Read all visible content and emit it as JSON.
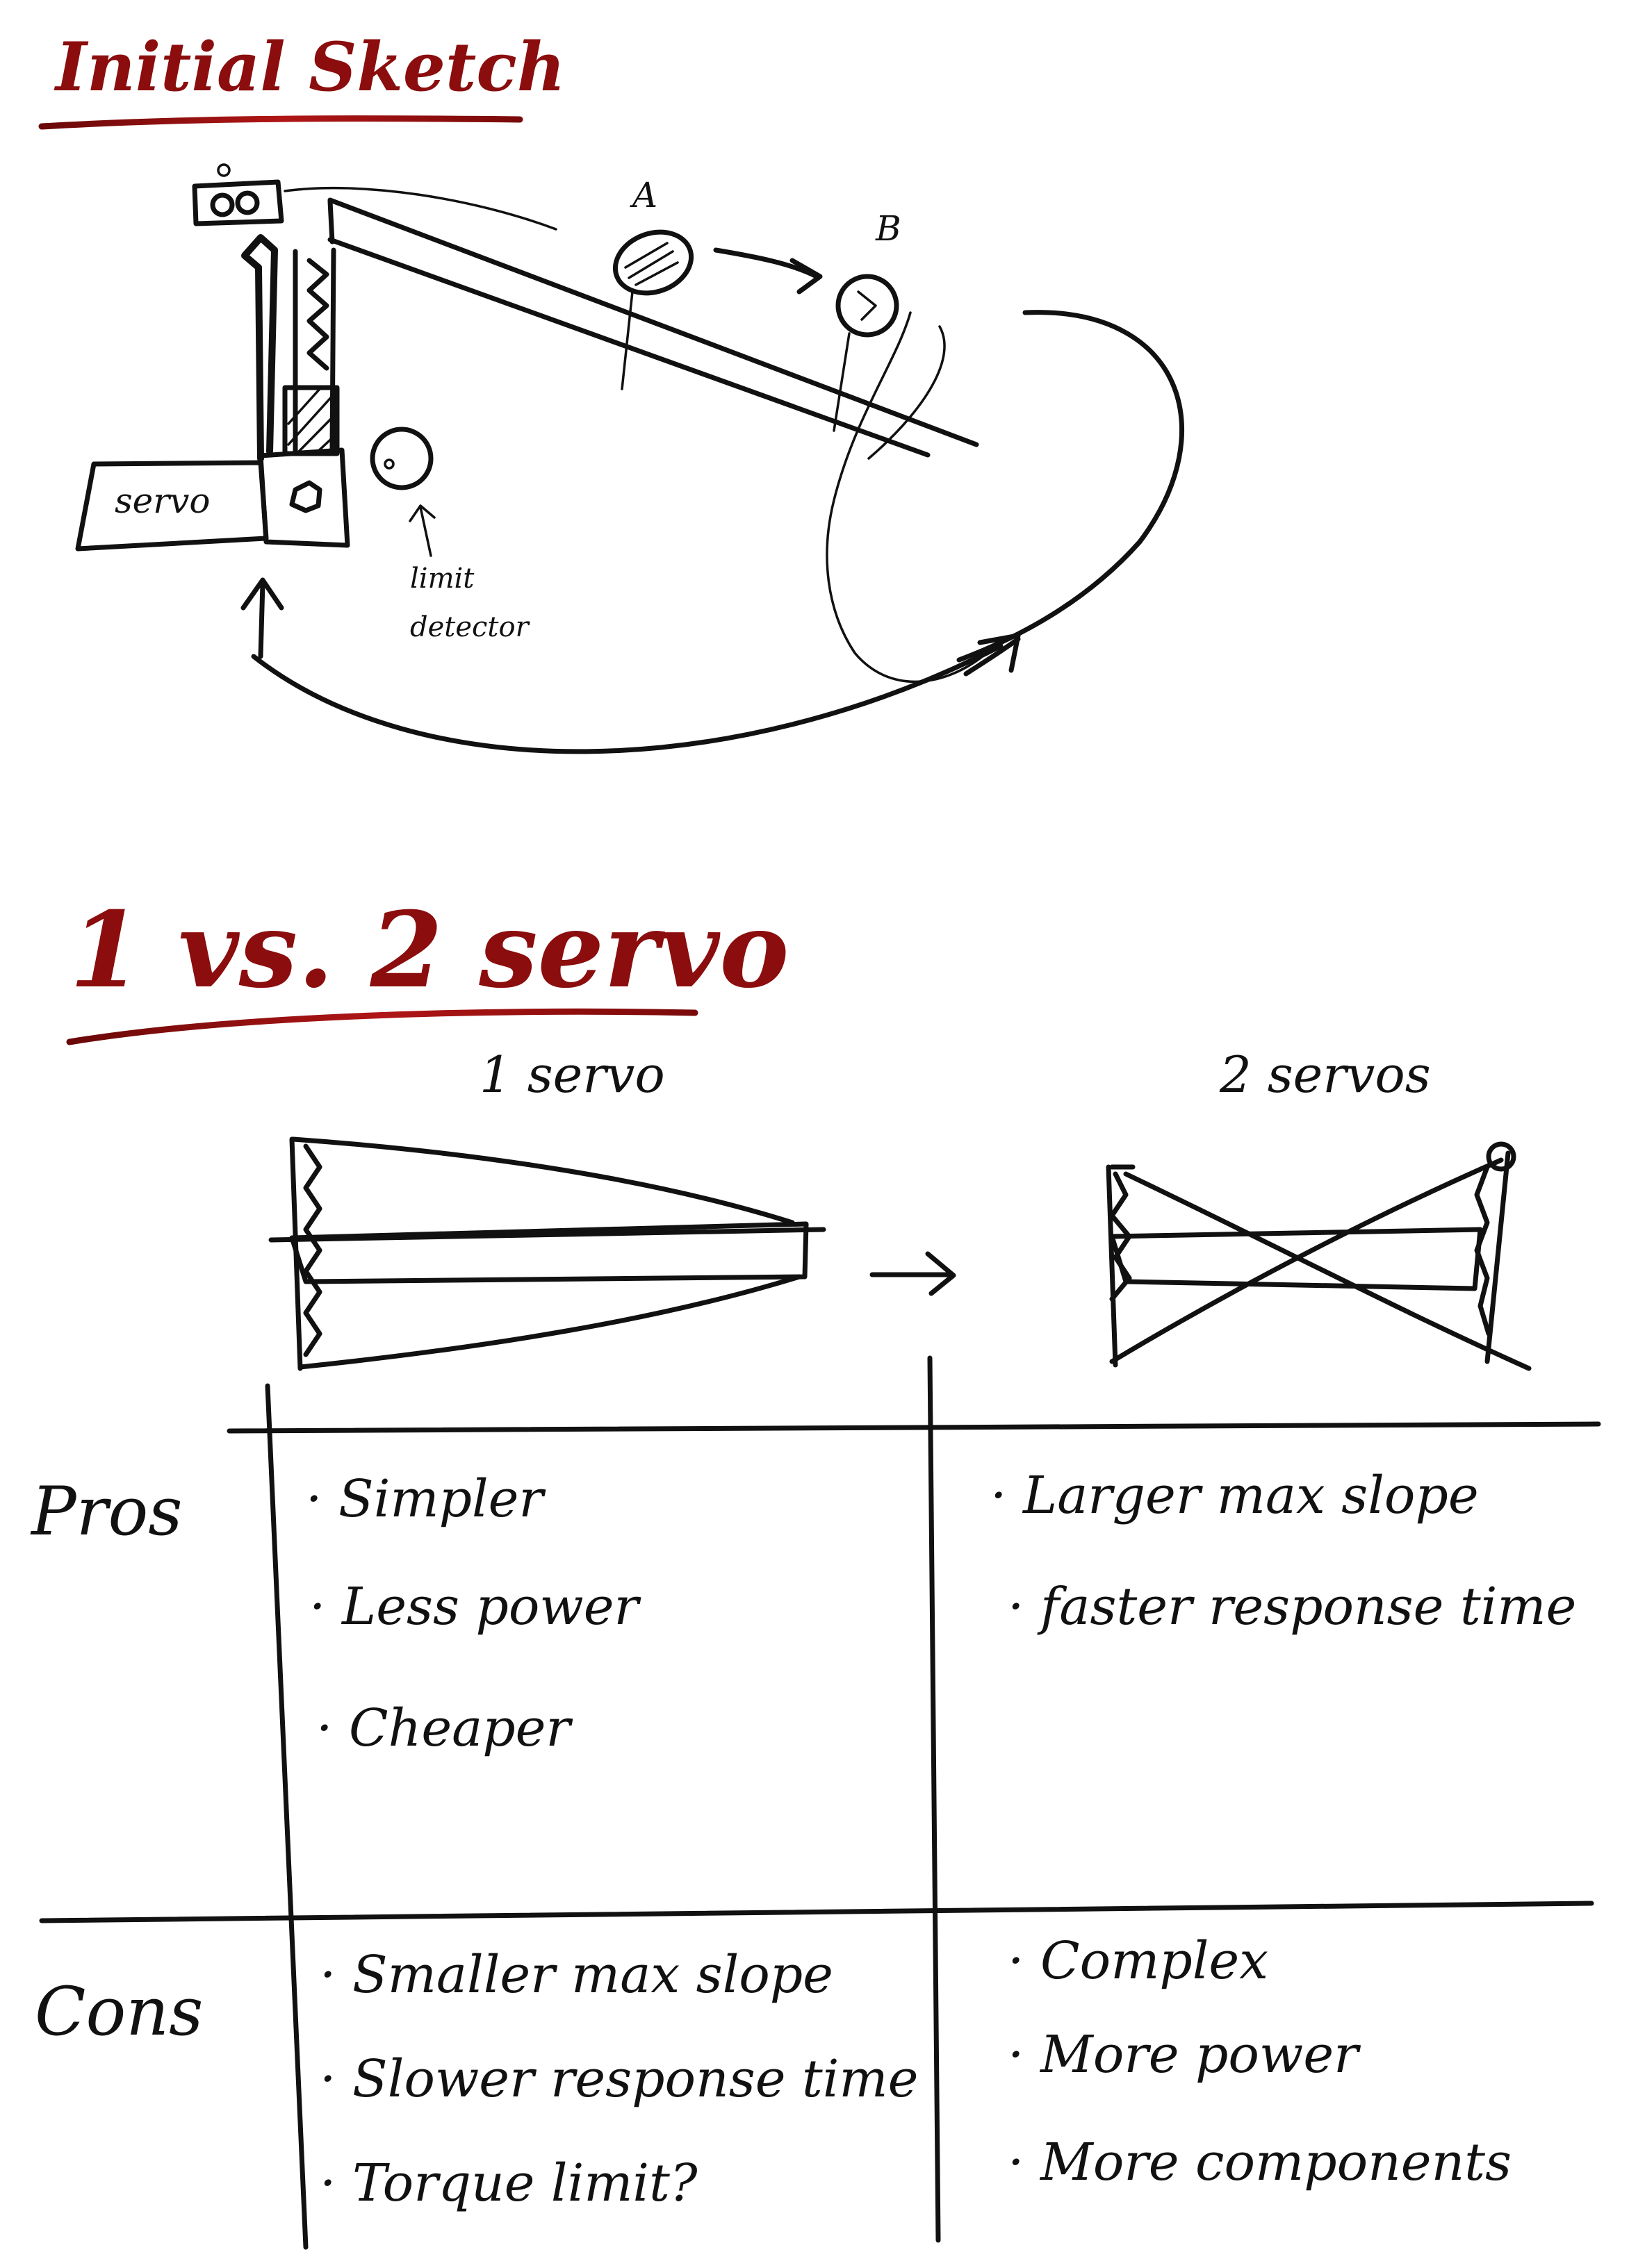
{
  "colors": {
    "ink": "#111111",
    "title_red": "#8b0d0d"
  },
  "sketch": {
    "title": "Initial Sketch",
    "labels": {
      "servo": "servo",
      "point_a": "A",
      "point_b": "B",
      "limit_detector_line1": "limit",
      "limit_detector_line2": "detector"
    }
  },
  "comparison": {
    "title": "1 vs. 2 servo",
    "col1_header": "1 servo",
    "col2_header": "2 servos",
    "rows": {
      "pros_label": "Pros",
      "cons_label": "Cons"
    },
    "pros": {
      "one_servo": [
        "Simpler",
        "Less power",
        "Cheaper"
      ],
      "two_servo": [
        "Larger max slope",
        "faster response time"
      ]
    },
    "cons": {
      "one_servo": [
        "Smaller max slope",
        "Slower response time",
        "Torque limit?"
      ],
      "two_servo": [
        "Complex",
        "More power",
        "More components"
      ]
    }
  }
}
